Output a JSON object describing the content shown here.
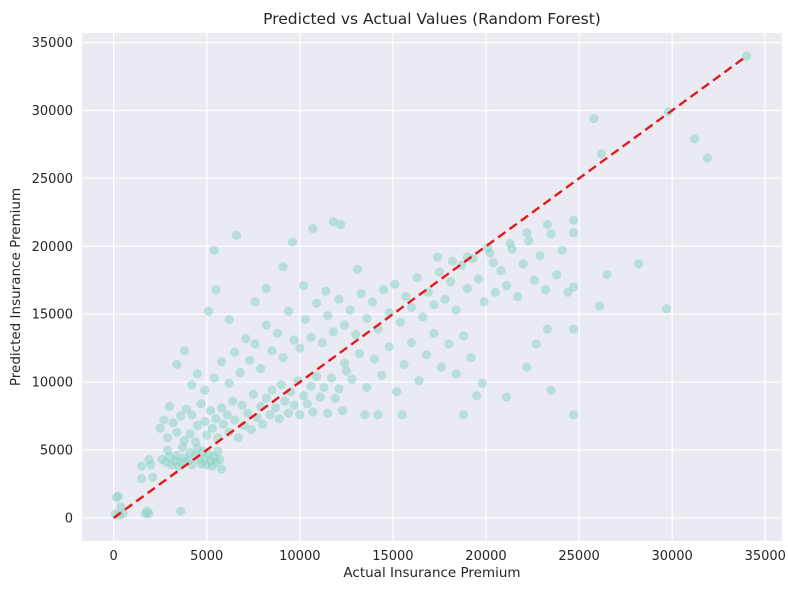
{
  "chart_data": {
    "type": "scatter",
    "title": "Predicted vs Actual Values (Random Forest)",
    "xlabel": "Actual Insurance Premium",
    "ylabel": "Predicted Insurance Premium",
    "xlim": [
      -1700,
      35900
    ],
    "ylim": [
      -1700,
      35700
    ],
    "xticks": [
      0,
      5000,
      10000,
      15000,
      20000,
      25000,
      30000,
      35000
    ],
    "yticks": [
      0,
      5000,
      10000,
      15000,
      20000,
      25000,
      30000,
      35000
    ],
    "xtick_labels": [
      "0",
      "5000",
      "10000",
      "15000",
      "20000",
      "25000",
      "30000",
      "35000"
    ],
    "ytick_labels": [
      "0",
      "5000",
      "10000",
      "15000",
      "20000",
      "25000",
      "30000",
      "35000"
    ],
    "grid": true,
    "background": "#eaeaf2",
    "point_color": "#8dd3c7",
    "point_alpha": 0.55,
    "reference_line": {
      "x": [
        0,
        34000
      ],
      "y": [
        0,
        34000
      ],
      "color": "#e31a1c",
      "style": "dashed"
    },
    "points": [
      [
        100,
        300
      ],
      [
        150,
        1500
      ],
      [
        250,
        1600
      ],
      [
        300,
        200
      ],
      [
        400,
        800
      ],
      [
        500,
        300
      ],
      [
        1500,
        2900
      ],
      [
        1700,
        300
      ],
      [
        1900,
        300
      ],
      [
        1500,
        3800
      ],
      [
        1900,
        4300
      ],
      [
        2000,
        3900
      ],
      [
        2100,
        3000
      ],
      [
        2600,
        4300
      ],
      [
        2800,
        4100
      ],
      [
        2900,
        5000
      ],
      [
        3000,
        4500
      ],
      [
        3100,
        3900
      ],
      [
        3300,
        4200
      ],
      [
        3400,
        4600
      ],
      [
        3500,
        3800
      ],
      [
        3600,
        4100
      ],
      [
        3700,
        5200
      ],
      [
        3800,
        4400
      ],
      [
        4000,
        4200
      ],
      [
        4100,
        4800
      ],
      [
        4200,
        3900
      ],
      [
        4400,
        4600
      ],
      [
        4500,
        5100
      ],
      [
        4600,
        4300
      ],
      [
        4700,
        4000
      ],
      [
        4800,
        4900
      ],
      [
        4900,
        4400
      ],
      [
        5000,
        3900
      ],
      [
        5100,
        4700
      ],
      [
        5200,
        4200
      ],
      [
        5300,
        3800
      ],
      [
        5400,
        4500
      ],
      [
        5500,
        4100
      ],
      [
        5600,
        4900
      ],
      [
        5700,
        4300
      ],
      [
        5800,
        3600
      ],
      [
        2500,
        6600
      ],
      [
        2700,
        7200
      ],
      [
        2900,
        5900
      ],
      [
        3000,
        8200
      ],
      [
        3200,
        7000
      ],
      [
        3400,
        6300
      ],
      [
        3600,
        7500
      ],
      [
        3800,
        5700
      ],
      [
        3900,
        8000
      ],
      [
        4100,
        6200
      ],
      [
        4200,
        7600
      ],
      [
        4400,
        5600
      ],
      [
        4500,
        6800
      ],
      [
        4700,
        8400
      ],
      [
        4900,
        7100
      ],
      [
        5000,
        6100
      ],
      [
        5200,
        7900
      ],
      [
        5300,
        6600
      ],
      [
        5500,
        7300
      ],
      [
        5600,
        5900
      ],
      [
        5800,
        8100
      ],
      [
        5900,
        6900
      ],
      [
        6100,
        7600
      ],
      [
        6200,
        6300
      ],
      [
        6400,
        8600
      ],
      [
        6500,
        7200
      ],
      [
        6700,
        5900
      ],
      [
        6900,
        8300
      ],
      [
        7000,
        6800
      ],
      [
        7200,
        7700
      ],
      [
        7400,
        6500
      ],
      [
        7500,
        9100
      ],
      [
        7700,
        7400
      ],
      [
        7900,
        8200
      ],
      [
        8000,
        6900
      ],
      [
        8200,
        8800
      ],
      [
        8400,
        7600
      ],
      [
        8500,
        9400
      ],
      [
        8700,
        8100
      ],
      [
        8900,
        7300
      ],
      [
        9000,
        9800
      ],
      [
        9200,
        8600
      ],
      [
        9400,
        7700
      ],
      [
        9500,
        9300
      ],
      [
        9700,
        8300
      ],
      [
        9900,
        10100
      ],
      [
        10000,
        7600
      ],
      [
        10200,
        9000
      ],
      [
        10400,
        8400
      ],
      [
        10600,
        9700
      ],
      [
        10700,
        7800
      ],
      [
        10900,
        10400
      ],
      [
        11100,
        8900
      ],
      [
        11300,
        9600
      ],
      [
        11500,
        7700
      ],
      [
        11700,
        10300
      ],
      [
        11900,
        8800
      ],
      [
        12100,
        9500
      ],
      [
        12300,
        7900
      ],
      [
        12500,
        10800
      ],
      [
        3400,
        11300
      ],
      [
        3800,
        12300
      ],
      [
        4200,
        9800
      ],
      [
        4500,
        10600
      ],
      [
        4900,
        9400
      ],
      [
        5400,
        10300
      ],
      [
        5800,
        11500
      ],
      [
        6200,
        9900
      ],
      [
        6500,
        12200
      ],
      [
        6800,
        10700
      ],
      [
        7100,
        13200
      ],
      [
        7300,
        11600
      ],
      [
        7600,
        12800
      ],
      [
        7900,
        11000
      ],
      [
        8200,
        14200
      ],
      [
        8500,
        12300
      ],
      [
        8800,
        13600
      ],
      [
        9100,
        11800
      ],
      [
        9400,
        15200
      ],
      [
        9700,
        13100
      ],
      [
        10000,
        12500
      ],
      [
        10300,
        14600
      ],
      [
        10600,
        13300
      ],
      [
        10900,
        15800
      ],
      [
        11200,
        12900
      ],
      [
        11500,
        14900
      ],
      [
        11800,
        13700
      ],
      [
        12100,
        16100
      ],
      [
        12400,
        14200
      ],
      [
        12700,
        15300
      ],
      [
        13000,
        13500
      ],
      [
        13300,
        16500
      ],
      [
        13600,
        14700
      ],
      [
        13900,
        15900
      ],
      [
        14200,
        13900
      ],
      [
        14500,
        16800
      ],
      [
        14800,
        15100
      ],
      [
        15100,
        17200
      ],
      [
        15400,
        14400
      ],
      [
        15700,
        16300
      ],
      [
        16000,
        15500
      ],
      [
        16300,
        17700
      ],
      [
        16600,
        14800
      ],
      [
        16900,
        16600
      ],
      [
        17200,
        15700
      ],
      [
        17500,
        18100
      ],
      [
        17800,
        16100
      ],
      [
        18100,
        17400
      ],
      [
        18400,
        15300
      ],
      [
        18700,
        18600
      ],
      [
        19000,
        16900
      ],
      [
        19300,
        19100
      ],
      [
        19600,
        17600
      ],
      [
        19900,
        15900
      ],
      [
        20200,
        19500
      ],
      [
        20500,
        16600
      ],
      [
        20800,
        18200
      ],
      [
        21100,
        17100
      ],
      [
        21400,
        19800
      ],
      [
        21700,
        16300
      ],
      [
        22000,
        18700
      ],
      [
        22300,
        20400
      ],
      [
        22600,
        17500
      ],
      [
        22900,
        19300
      ],
      [
        23200,
        16800
      ],
      [
        23500,
        20900
      ],
      [
        23800,
        17900
      ],
      [
        24100,
        19700
      ],
      [
        24400,
        16600
      ],
      [
        24700,
        21900
      ],
      [
        24700,
        21000
      ],
      [
        24700,
        17000
      ],
      [
        24700,
        13900
      ],
      [
        24700,
        7600
      ],
      [
        12400,
        11400
      ],
      [
        12800,
        10200
      ],
      [
        13200,
        12100
      ],
      [
        13600,
        9600
      ],
      [
        14000,
        11700
      ],
      [
        14400,
        10500
      ],
      [
        14800,
        12600
      ],
      [
        15200,
        9300
      ],
      [
        15600,
        11300
      ],
      [
        16000,
        12900
      ],
      [
        16400,
        10100
      ],
      [
        16800,
        12000
      ],
      [
        17200,
        13600
      ],
      [
        17600,
        11100
      ],
      [
        18000,
        12800
      ],
      [
        18400,
        10600
      ],
      [
        18800,
        13400
      ],
      [
        19200,
        11800
      ],
      [
        13500,
        7600
      ],
      [
        14200,
        7600
      ],
      [
        15500,
        7600
      ],
      [
        18800,
        7600
      ],
      [
        19500,
        9000
      ],
      [
        19800,
        9900
      ],
      [
        21100,
        8900
      ],
      [
        22200,
        11100
      ],
      [
        23500,
        9400
      ],
      [
        23300,
        13900
      ],
      [
        22700,
        12800
      ],
      [
        26100,
        15600
      ],
      [
        26500,
        17900
      ],
      [
        28200,
        18700
      ],
      [
        29700,
        15400
      ],
      [
        25800,
        29400
      ],
      [
        26200,
        26800
      ],
      [
        29800,
        29900
      ],
      [
        31200,
        27900
      ],
      [
        31900,
        26500
      ],
      [
        34000,
        34000
      ],
      [
        5400,
        19700
      ],
      [
        6600,
        20800
      ],
      [
        9600,
        20300
      ],
      [
        10700,
        21300
      ],
      [
        11800,
        21800
      ],
      [
        12200,
        21600
      ],
      [
        9100,
        18500
      ],
      [
        10200,
        17100
      ],
      [
        11400,
        16700
      ],
      [
        13100,
        18300
      ],
      [
        8200,
        16900
      ],
      [
        7600,
        15900
      ],
      [
        6200,
        14600
      ],
      [
        5500,
        16800
      ],
      [
        5100,
        15200
      ],
      [
        1800,
        500
      ],
      [
        3600,
        500
      ],
      [
        20100,
        19900
      ],
      [
        20400,
        18800
      ],
      [
        21300,
        20200
      ],
      [
        22200,
        21000
      ],
      [
        23300,
        21600
      ],
      [
        19000,
        19200
      ],
      [
        18200,
        18900
      ],
      [
        17400,
        19200
      ]
    ]
  }
}
